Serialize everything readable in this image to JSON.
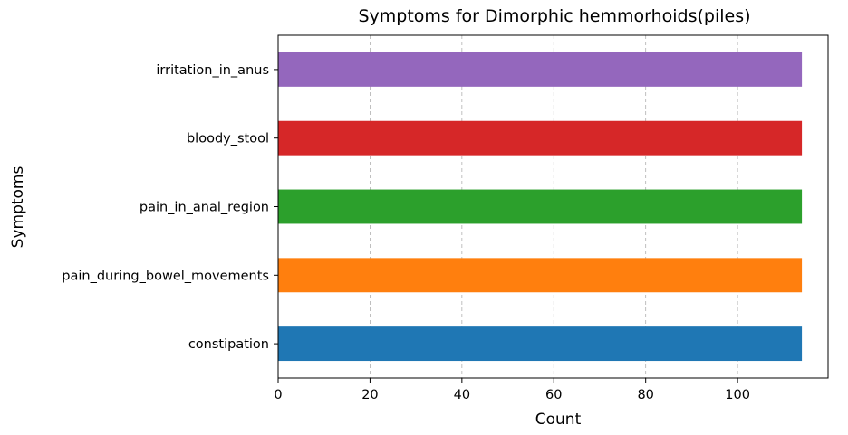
{
  "chart_data": {
    "type": "bar",
    "orientation": "horizontal",
    "title": "Symptoms for Dimorphic hemmorhoids(piles)",
    "xlabel": "Count",
    "ylabel": "Symptoms",
    "categories": [
      "constipation",
      "pain_during_bowel_movements",
      "pain_in_anal_region",
      "bloody_stool",
      "irritation_in_anus"
    ],
    "values": [
      114,
      114,
      114,
      114,
      114
    ],
    "colors": [
      "#1f77b4",
      "#ff7f0e",
      "#2ca02c",
      "#d62728",
      "#9467bd"
    ],
    "xlim": [
      0,
      119.7
    ],
    "xticks": [
      0,
      20,
      40,
      60,
      80,
      100
    ],
    "xtick_labels": [
      "0",
      "20",
      "40",
      "60",
      "80",
      "100"
    ],
    "grid": "x-dashed",
    "legend": "none"
  }
}
